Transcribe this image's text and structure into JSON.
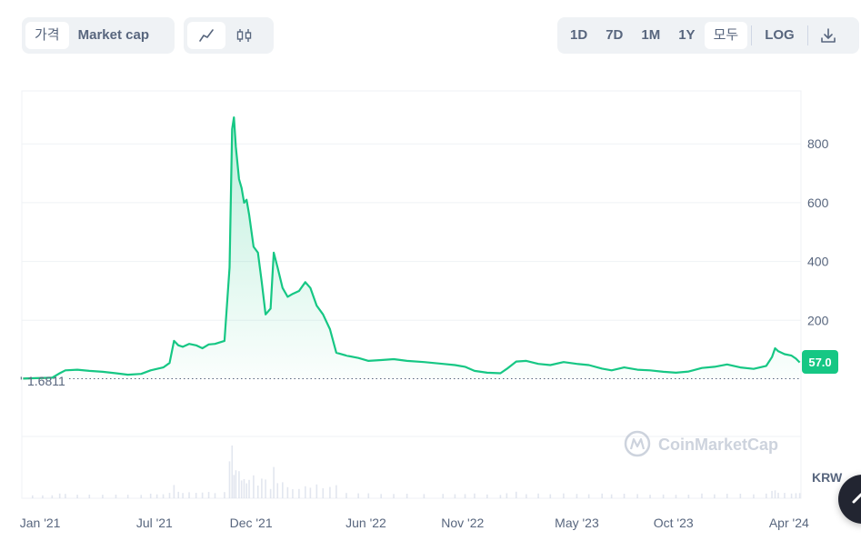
{
  "toolbar": {
    "type_tabs": [
      {
        "label": "가격",
        "active": true
      },
      {
        "label": "Market cap",
        "active": false
      }
    ],
    "view_tabs": [
      {
        "icon": "line-chart-icon",
        "active": true
      },
      {
        "icon": "candlestick-icon",
        "active": false
      }
    ],
    "range_tabs": [
      {
        "label": "1D",
        "active": false
      },
      {
        "label": "7D",
        "active": false
      },
      {
        "label": "1M",
        "active": false
      },
      {
        "label": "1Y",
        "active": false
      },
      {
        "label": "모두",
        "active": true
      }
    ],
    "log_label": "LOG",
    "download_icon": "download-icon"
  },
  "watermark": "CoinMarketCap",
  "currency_label": "KRW",
  "colors": {
    "line": "#16c784",
    "line_early": "#ea3943",
    "current_badge": "#16c784",
    "grid": "#eff2f5",
    "volume": "#cfd6e4"
  },
  "chart_data": {
    "type": "area",
    "x_range": [
      "2020-12-03",
      "2024-04-20"
    ],
    "ylim": [
      0,
      980
    ],
    "y_ticks": [
      200,
      400,
      600,
      800
    ],
    "start_price_label": "1.6811",
    "current_price_label": "57.0",
    "x_ticks": [
      {
        "date": "2021-01-01",
        "label": "Jan '21"
      },
      {
        "date": "2021-07-01",
        "label": "Jul '21"
      },
      {
        "date": "2021-12-01",
        "label": "Dec '21"
      },
      {
        "date": "2022-06-01",
        "label": "Jun '22"
      },
      {
        "date": "2022-11-01",
        "label": "Nov '22"
      },
      {
        "date": "2023-05-01",
        "label": "May '23"
      },
      {
        "date": "2023-10-01",
        "label": "Oct '23"
      },
      {
        "date": "2024-04-01",
        "label": "Apr '24"
      }
    ],
    "series": [
      {
        "points": [
          [
            "2020-12-05",
            2
          ],
          [
            "2020-12-20",
            3
          ],
          [
            "2021-01-05",
            4
          ],
          [
            "2021-01-20",
            5
          ],
          [
            "2021-02-01",
            20
          ],
          [
            "2021-02-10",
            30
          ],
          [
            "2021-03-01",
            32
          ],
          [
            "2021-03-20",
            28
          ],
          [
            "2021-04-10",
            25
          ],
          [
            "2021-05-01",
            20
          ],
          [
            "2021-05-20",
            15
          ],
          [
            "2021-06-10",
            18
          ],
          [
            "2021-06-25",
            30
          ],
          [
            "2021-07-05",
            35
          ],
          [
            "2021-07-15",
            40
          ],
          [
            "2021-07-25",
            55
          ],
          [
            "2021-08-01",
            130
          ],
          [
            "2021-08-08",
            115
          ],
          [
            "2021-08-15",
            110
          ],
          [
            "2021-08-25",
            120
          ],
          [
            "2021-09-05",
            115
          ],
          [
            "2021-09-15",
            105
          ],
          [
            "2021-09-25",
            118
          ],
          [
            "2021-10-05",
            120
          ],
          [
            "2021-10-20",
            130
          ],
          [
            "2021-10-28",
            380
          ],
          [
            "2021-11-01",
            850
          ],
          [
            "2021-11-04",
            890
          ],
          [
            "2021-11-07",
            790
          ],
          [
            "2021-11-12",
            680
          ],
          [
            "2021-11-16",
            650
          ],
          [
            "2021-11-20",
            600
          ],
          [
            "2021-11-24",
            610
          ],
          [
            "2021-11-28",
            560
          ],
          [
            "2021-12-05",
            450
          ],
          [
            "2021-12-12",
            430
          ],
          [
            "2021-12-18",
            330
          ],
          [
            "2021-12-24",
            220
          ],
          [
            "2022-01-01",
            240
          ],
          [
            "2022-01-06",
            430
          ],
          [
            "2022-01-12",
            380
          ],
          [
            "2022-01-20",
            310
          ],
          [
            "2022-01-28",
            280
          ],
          [
            "2022-02-05",
            290
          ],
          [
            "2022-02-15",
            300
          ],
          [
            "2022-02-25",
            330
          ],
          [
            "2022-03-05",
            310
          ],
          [
            "2022-03-15",
            250
          ],
          [
            "2022-03-25",
            220
          ],
          [
            "2022-04-05",
            170
          ],
          [
            "2022-04-15",
            90
          ],
          [
            "2022-05-01",
            80
          ],
          [
            "2022-05-20",
            72
          ],
          [
            "2022-06-05",
            62
          ],
          [
            "2022-06-25",
            65
          ],
          [
            "2022-07-15",
            68
          ],
          [
            "2022-08-05",
            62
          ],
          [
            "2022-09-01",
            58
          ],
          [
            "2022-10-01",
            52
          ],
          [
            "2022-10-20",
            48
          ],
          [
            "2022-11-05",
            42
          ],
          [
            "2022-11-20",
            28
          ],
          [
            "2022-12-10",
            22
          ],
          [
            "2022-12-31",
            20
          ],
          [
            "2023-01-10",
            35
          ],
          [
            "2023-01-25",
            60
          ],
          [
            "2023-02-10",
            62
          ],
          [
            "2023-03-01",
            52
          ],
          [
            "2023-03-20",
            48
          ],
          [
            "2023-04-10",
            58
          ],
          [
            "2023-05-01",
            52
          ],
          [
            "2023-05-20",
            48
          ],
          [
            "2023-06-10",
            36
          ],
          [
            "2023-06-25",
            30
          ],
          [
            "2023-07-15",
            40
          ],
          [
            "2023-08-05",
            32
          ],
          [
            "2023-08-25",
            30
          ],
          [
            "2023-09-15",
            25
          ],
          [
            "2023-10-05",
            22
          ],
          [
            "2023-10-25",
            26
          ],
          [
            "2023-11-15",
            38
          ],
          [
            "2023-12-05",
            42
          ],
          [
            "2023-12-25",
            50
          ],
          [
            "2024-01-15",
            40
          ],
          [
            "2024-02-05",
            35
          ],
          [
            "2024-02-25",
            45
          ],
          [
            "2024-03-05",
            75
          ],
          [
            "2024-03-10",
            105
          ],
          [
            "2024-03-15",
            95
          ],
          [
            "2024-03-25",
            85
          ],
          [
            "2024-04-05",
            80
          ],
          [
            "2024-04-12",
            70
          ],
          [
            "2024-04-18",
            57
          ]
        ]
      }
    ]
  }
}
